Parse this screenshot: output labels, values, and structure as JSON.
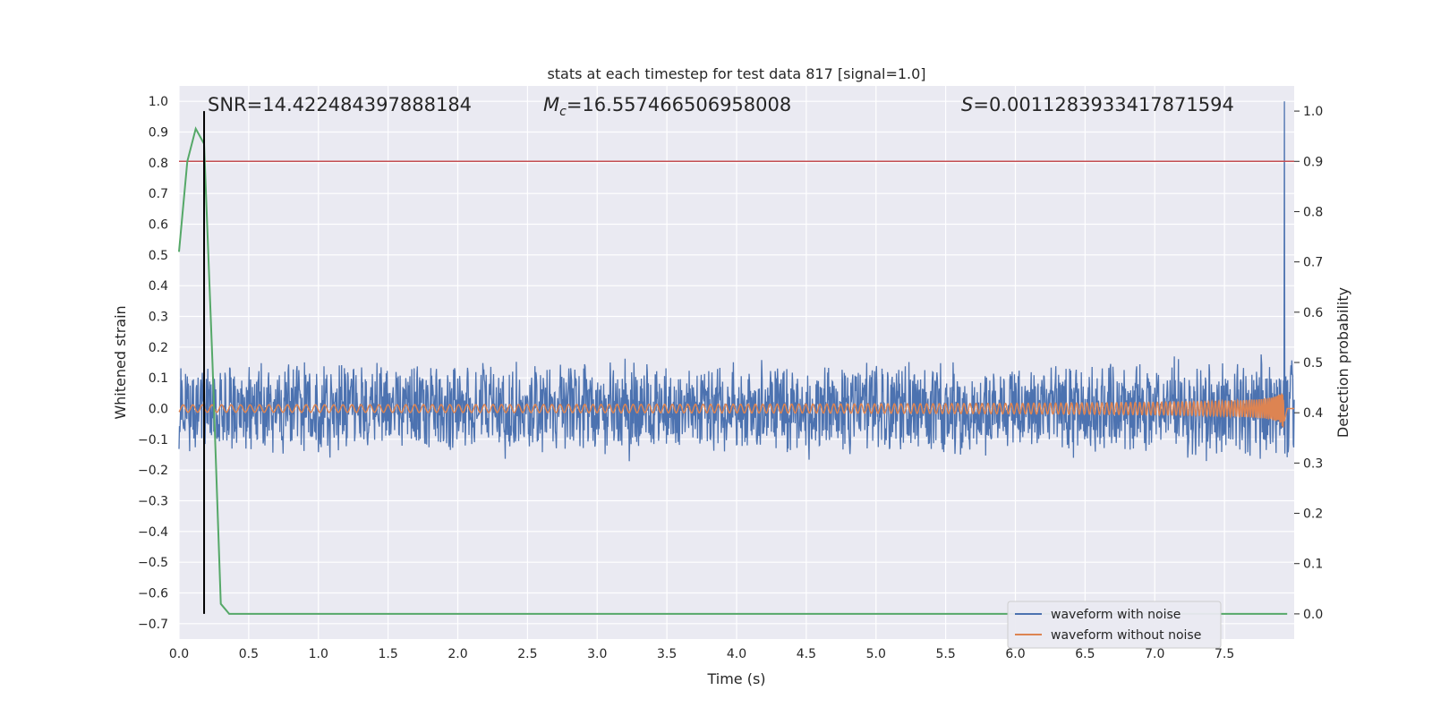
{
  "chart_data": {
    "type": "line",
    "title": "stats at each timestep for test data 817 [signal=1.0]",
    "xlabel": "Time (s)",
    "ylabel": "Whitened strain",
    "y2label": "Detection probability",
    "xlim": [
      0.0,
      8.0
    ],
    "ylim": [
      -0.75,
      1.05
    ],
    "y2lim": [
      -0.05,
      1.05
    ],
    "x_ticks": [
      "0.0",
      "0.5",
      "1.0",
      "1.5",
      "2.0",
      "2.5",
      "3.0",
      "3.5",
      "4.0",
      "4.5",
      "5.0",
      "5.5",
      "6.0",
      "6.5",
      "7.0",
      "7.5"
    ],
    "y_ticks": [
      "1.0",
      "0.9",
      "0.8",
      "0.7",
      "0.6",
      "0.5",
      "0.4",
      "0.3",
      "0.2",
      "0.1",
      "0.0",
      "−0.1",
      "−0.2",
      "−0.3",
      "−0.4",
      "−0.5",
      "−0.6",
      "−0.7"
    ],
    "y2_ticks": [
      "1.0",
      "0.9",
      "0.8",
      "0.7",
      "0.6",
      "0.5",
      "0.4",
      "0.3",
      "0.2",
      "0.1",
      "0.0"
    ],
    "grid": true,
    "legend_placement": "lower-right",
    "annotations": {
      "snr": "SNR=14.422484397888184",
      "mc_symbol": "M",
      "mc_sub": "c",
      "mc_value": "=16.557466506958008",
      "s_symbol": "S",
      "s_value": "=0.0011283933417871594"
    },
    "series": [
      {
        "name": "waveform with noise",
        "color": "#4c72b0",
        "axis": "left",
        "noise_amplitude": 0.16,
        "peak_time": 7.93
      },
      {
        "name": "waveform without noise",
        "color": "#dd8452",
        "axis": "left",
        "peak_time": 7.93
      },
      {
        "color": "#55a868",
        "axis": "right",
        "x": [
          0.0,
          0.06,
          0.12,
          0.18,
          0.24,
          0.3,
          0.36,
          0.5,
          1.0,
          2.0,
          3.0,
          4.0,
          5.0,
          6.0,
          7.0,
          7.92,
          7.95
        ],
        "y": [
          0.72,
          0.9,
          0.965,
          0.935,
          0.5,
          0.02,
          0.0,
          0.0,
          0.0,
          0.0,
          0.0,
          0.0,
          0.0,
          0.0,
          0.0,
          0.0,
          0.0
        ]
      }
    ],
    "threshold": {
      "axis": "right",
      "value": 0.9,
      "color": "#c44e52"
    },
    "marker_time": 0.18
  }
}
